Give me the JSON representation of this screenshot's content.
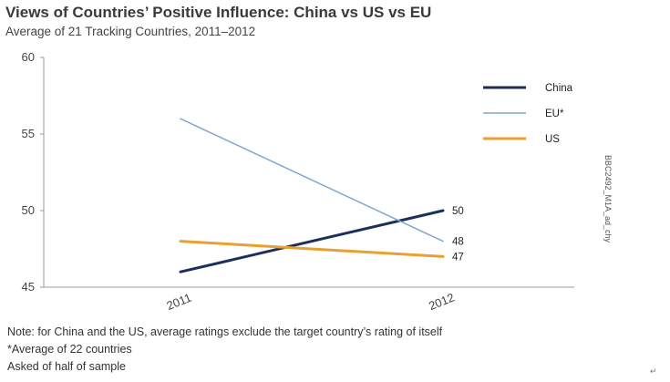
{
  "title": "Views of Countries’ Positive Influence: China vs US vs EU",
  "subtitle": "Average of 21 Tracking Countries, 2011–2012",
  "notes": [
    "Note: for China and the US, average ratings exclude the target country’s rating of itself",
    "*Average of 22 countries",
    "Asked of half of sample"
  ],
  "source_code": "BBC2492_M1A_ad_chy",
  "corner_mark": "↵",
  "chart_data": {
    "type": "line",
    "x": [
      "2011",
      "2012"
    ],
    "ylim": [
      45,
      60
    ],
    "yticks": [
      45,
      50,
      55,
      60
    ],
    "grid": false,
    "legend_position": "top-right",
    "series": [
      {
        "name": "China",
        "values": [
          46,
          50
        ],
        "color": "#1c2e5c",
        "end_label": "50"
      },
      {
        "name": "EU*",
        "values": [
          56,
          48
        ],
        "color": "#7da7cf",
        "end_label": "48"
      },
      {
        "name": "US",
        "values": [
          48,
          47
        ],
        "color": "#e8a030",
        "end_label": "47"
      }
    ]
  }
}
